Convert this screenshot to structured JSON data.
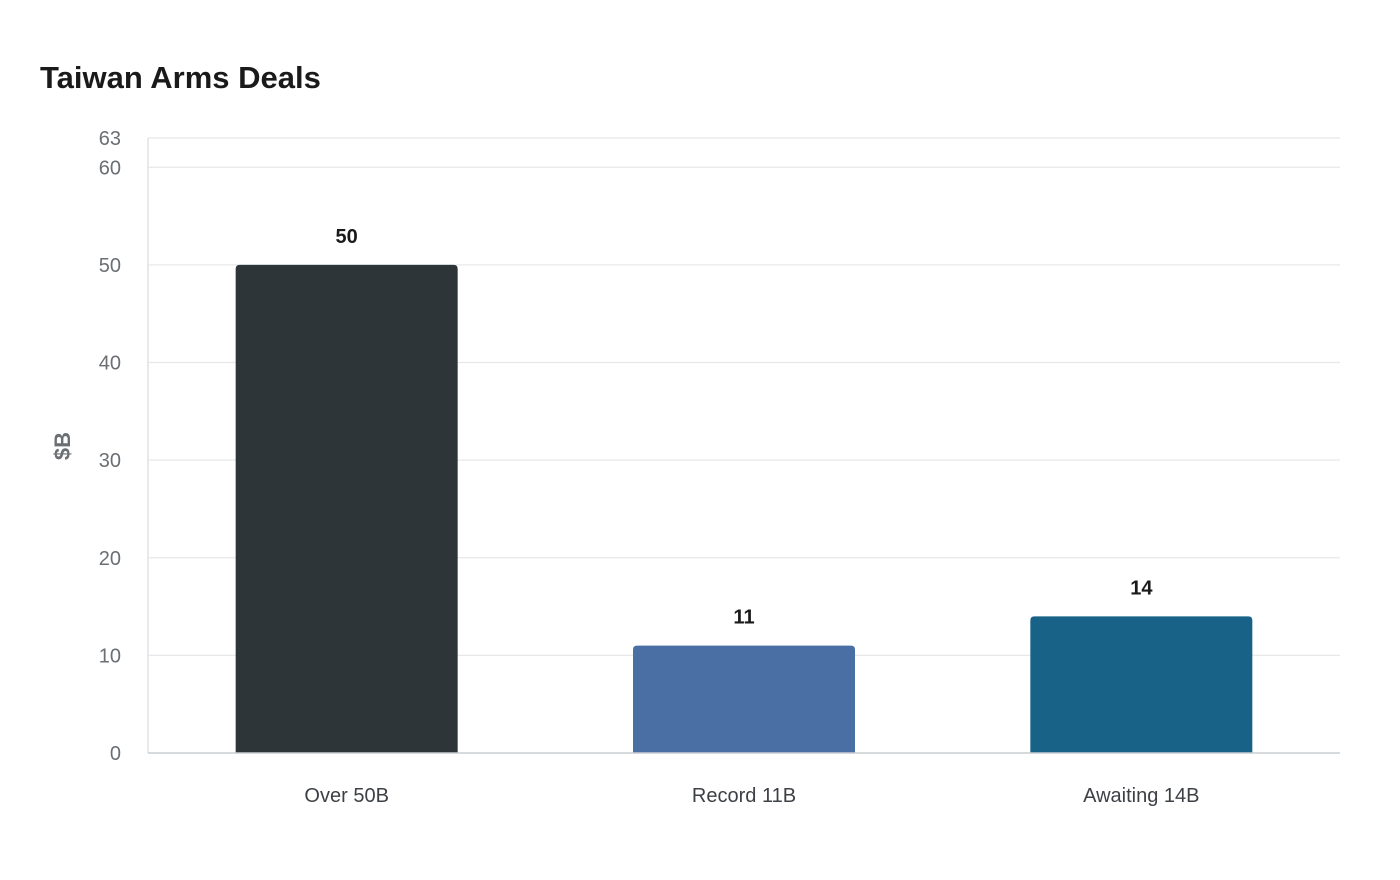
{
  "chart_data": {
    "type": "bar",
    "title": "Taiwan Arms Deals",
    "ylabel": "$B",
    "xlabel": "",
    "categories": [
      "Over 50B",
      "Record 11B",
      "Awaiting 14B"
    ],
    "values": [
      50,
      11,
      14
    ],
    "colors": [
      "#2e3538",
      "#4a6fa5",
      "#186288"
    ],
    "ylim": [
      0,
      63
    ],
    "yticks": [
      0,
      10,
      20,
      30,
      40,
      50,
      60,
      63
    ],
    "grid": true,
    "legend": false,
    "data_labels": true
  }
}
